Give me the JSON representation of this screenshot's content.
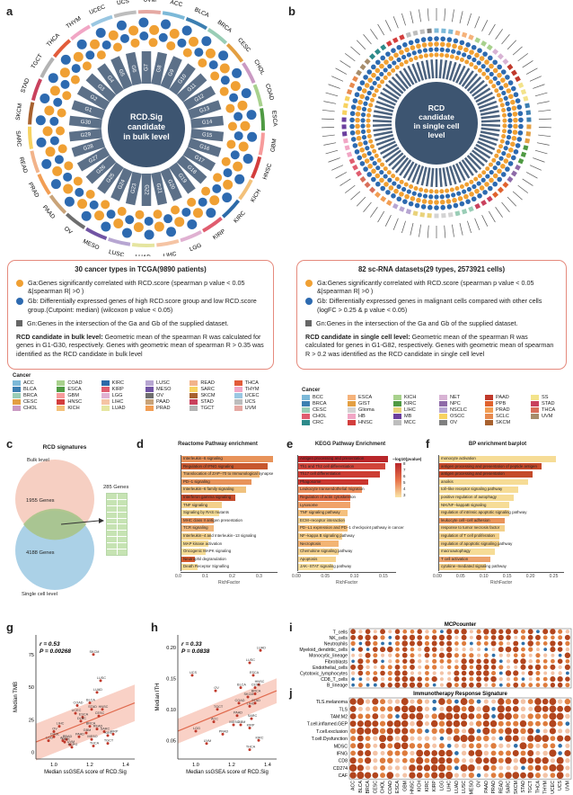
{
  "labels": {
    "a": "a",
    "b": "b",
    "c": "c",
    "d": "d",
    "e": "e",
    "f": "f",
    "g": "g",
    "h": "h",
    "i": "i",
    "j": "j"
  },
  "panel_a": {
    "center": "RCD.Sig candidate in bulk level",
    "cancers": [
      "ACC",
      "BLCA",
      "BRCA",
      "CESC",
      "CHOL",
      "COAD",
      "ESCA",
      "GBM",
      "HNSC",
      "KICH",
      "KIRC",
      "KIRP",
      "LGG",
      "LIHC",
      "LUAD",
      "LUSC",
      "MESO",
      "OV",
      "PAAD",
      "PRAD",
      "READ",
      "SARC",
      "SKCM",
      "STAD",
      "TGCT",
      "THCA",
      "THYM",
      "UCEC",
      "UCS",
      "UVM"
    ],
    "genes": [
      "G1",
      "G2",
      "G3",
      "G4",
      "G5",
      "G6",
      "G7",
      "G8",
      "G9",
      "G10",
      "G11",
      "G12",
      "G13",
      "G14",
      "G15",
      "G16",
      "G17",
      "G18",
      "G19",
      "G20",
      "G21",
      "G22",
      "G23",
      "G24",
      "G25",
      "G26",
      "G27",
      "G28",
      "G29",
      "G30"
    ]
  },
  "panel_b": {
    "center": "RCD candidate in single cell level"
  },
  "box_left": {
    "title": "30 cancer types in TCGA(9890 patients)",
    "ga": "Ga:Genes significantly correlated with RCD.score (spearman p value < 0.05 &|spearman R| >0 )",
    "gb": "Gb: Differentially expressed genes of high RCD.score group and low RCD.score group.(Cutpoint: median) (wilcoxon p value < 0.05)",
    "gn": "Gn:Genes in the intersection of the Ga and Gb of the supplied dataset.",
    "rcd_head": "RCD candidate in bulk level:",
    "rcd_text": " Geometric mean of the spearman R was calculated for genes in G1-G30, respectively. Genes with geometric mean of spearman R > 0.35 was identified as the RCD candidate in bulk level"
  },
  "box_right": {
    "title": "82 sc-RNA datasets(29 types, 2573921 cells)",
    "ga": "Ga:Genes significantly correlated with RCD.score (spearman p value < 0.05 &|spearman R| >0 )",
    "gb": "Gb: Differentially expressed genes in malignant cells compared with other cells (logFC > 0.25 & p value < 0.05)",
    "gn": "Gn:Genes in the intersection of the Ga and Gb of the supplied dataset.",
    "rcd_head": "RCD candidate in single cell level:",
    "rcd_text": " Geometric mean of the spearman R was calculated for genes in G1-G82, respectively. Genes with geometric mean of spearman R > 0.2 was identified as the RCD candidate in single cell level"
  },
  "cancer_legend_left": {
    "title": "Cancer",
    "items": [
      {
        "n": "ACC",
        "c": "#7cb9d8"
      },
      {
        "n": "COAD",
        "c": "#a8d18d"
      },
      {
        "n": "KIRC",
        "c": "#2d6aa8"
      },
      {
        "n": "LUSC",
        "c": "#b7a6d2"
      },
      {
        "n": "READ",
        "c": "#f2b38a"
      },
      {
        "n": "THCA",
        "c": "#e25c3a"
      },
      {
        "n": "BLCA",
        "c": "#3c7fb1"
      },
      {
        "n": "ESCA",
        "c": "#4f9a43"
      },
      {
        "n": "KIRP",
        "c": "#e05d6f"
      },
      {
        "n": "MESO",
        "c": "#7154a4"
      },
      {
        "n": "SARC",
        "c": "#f7d260"
      },
      {
        "n": "THYM",
        "c": "#f1a6c5"
      },
      {
        "n": "BRCA",
        "c": "#99cdb6"
      },
      {
        "n": "GBM",
        "c": "#f79b9b"
      },
      {
        "n": "LGG",
        "c": "#e0b1d2"
      },
      {
        "n": "OV",
        "c": "#6e6e6e"
      },
      {
        "n": "SKCM",
        "c": "#a8612e"
      },
      {
        "n": "UCEC",
        "c": "#9ac7e2"
      },
      {
        "n": "CESC",
        "c": "#e39f42"
      },
      {
        "n": "HNSC",
        "c": "#d33e3d"
      },
      {
        "n": "LIHC",
        "c": "#f5c4a4"
      },
      {
        "n": "PAAD",
        "c": "#c9a378"
      },
      {
        "n": "STAD",
        "c": "#c9415d"
      },
      {
        "n": "UCS",
        "c": "#bdbdbd"
      },
      {
        "n": "CHOL",
        "c": "#ca9ac3"
      },
      {
        "n": "KICH",
        "c": "#f3c17a"
      },
      {
        "n": "LUAD",
        "c": "#e5e5a0"
      },
      {
        "n": "PRAD",
        "c": "#f29e54"
      },
      {
        "n": "TGCT",
        "c": "#b3b3b3"
      },
      {
        "n": "UVM",
        "c": "#e5a9a3"
      }
    ]
  },
  "cancer_legend_right": {
    "title": "Cancer",
    "items": [
      {
        "n": "BCC",
        "c": "#7cb9d8"
      },
      {
        "n": "ESCA",
        "c": "#f5b27a"
      },
      {
        "n": "KICH",
        "c": "#a8d18d"
      },
      {
        "n": "NET",
        "c": "#d8b3d4"
      },
      {
        "n": "PAAD",
        "c": "#c0392b"
      },
      {
        "n": "SS",
        "c": "#f3e38b"
      },
      {
        "n": "BRCA",
        "c": "#3c7fb1"
      },
      {
        "n": "GIST",
        "c": "#e39f42"
      },
      {
        "n": "KIRC",
        "c": "#4f9a43"
      },
      {
        "n": "NPC",
        "c": "#8e6aa8"
      },
      {
        "n": "PPB",
        "c": "#e0622e"
      },
      {
        "n": "STAD",
        "c": "#c9415d"
      },
      {
        "n": "CESC",
        "c": "#99cdb6"
      },
      {
        "n": "Glioma",
        "c": "#d3d3d3"
      },
      {
        "n": "LIHC",
        "c": "#e9d27a"
      },
      {
        "n": "NSCLC",
        "c": "#b7a6d2"
      },
      {
        "n": "PRAD",
        "c": "#f29e54"
      },
      {
        "n": "THCA",
        "c": "#d96f5a"
      },
      {
        "n": "CHOL",
        "c": "#e05d6f"
      },
      {
        "n": "HB",
        "c": "#f1a6c5"
      },
      {
        "n": "MB",
        "c": "#6b3f9e"
      },
      {
        "n": "OSCC",
        "c": "#f7d260"
      },
      {
        "n": "SCLC",
        "c": "#e78a4f"
      },
      {
        "n": "UVM",
        "c": "#a78d6b"
      },
      {
        "n": "CRC",
        "c": "#2d8a8a"
      },
      {
        "n": "HNSC",
        "c": "#d33e3d"
      },
      {
        "n": "MCC",
        "c": "#bdbdbd"
      },
      {
        "n": "OV",
        "c": "#7f7f7f"
      },
      {
        "n": "SKCM",
        "c": "#a8612e"
      }
    ]
  },
  "panel_c": {
    "title": "RCD signatures",
    "bulk": "Bulk level",
    "sc": "Single cell level",
    "n_bulk": "1955 Genes",
    "n_sc": "4188 Genes",
    "n_overlap": "285 Genes"
  },
  "panel_d": {
    "title": "Reactome Pathway enrichment",
    "xlabel": "RichFactor",
    "ticks": [
      "0.0",
      "0.1",
      "0.2",
      "0.3"
    ],
    "terms": [
      {
        "t": "Interleukin−6 signaling",
        "v": 0.34,
        "c": "#e8935a"
      },
      {
        "t": "Regulation of IFNG signaling",
        "v": 0.32,
        "c": "#c7572e"
      },
      {
        "t": "Translocation of ZAP−70 to Immunological synapse",
        "v": 0.29,
        "c": "#ecb271"
      },
      {
        "t": "PD−1 signaling",
        "v": 0.26,
        "c": "#e8935a"
      },
      {
        "t": "Interleukin−6 family signaling",
        "v": 0.24,
        "c": "#f0c27e"
      },
      {
        "t": "Interferon gamma signaling",
        "v": 0.2,
        "c": "#c44a2a"
      },
      {
        "t": "TNF signaling",
        "v": 0.15,
        "c": "#f3d08a"
      },
      {
        "t": "Signaling by RAS mutants",
        "v": 0.14,
        "c": "#f6dc96"
      },
      {
        "t": "MHC class II antigen presentation",
        "v": 0.12,
        "c": "#e8935a"
      },
      {
        "t": "TCR signaling",
        "v": 0.12,
        "c": "#f0b67a"
      },
      {
        "t": "Interleukin−4 and Interleukin−13 signaling",
        "v": 0.11,
        "c": "#f3d08a"
      },
      {
        "t": "MAP kinase activation",
        "v": 0.1,
        "c": "#f6dc96"
      },
      {
        "t": "Oncogenic MAPK signaling",
        "v": 0.09,
        "c": "#f6dc96"
      },
      {
        "t": "Neutrophil degranulation",
        "v": 0.05,
        "c": "#d45a2e"
      },
      {
        "t": "Death Receptor Signalling",
        "v": 0.06,
        "c": "#f6dc96"
      }
    ]
  },
  "panel_e": {
    "title": "KEGG Pathway Enrichment",
    "xlabel": "RichFactor",
    "ticks": [
      "0.00",
      "0.05",
      "0.10",
      "0.15"
    ],
    "legend_title": "−log10(pvalue)",
    "legend_ticks": [
      "8",
      "7",
      "6",
      "5",
      "4",
      "3"
    ],
    "terms": [
      {
        "t": "Antigen processing and presentation",
        "v": 0.155,
        "c": "#b8262a"
      },
      {
        "t": "Th1 and Th2 cell differentiation",
        "v": 0.15,
        "c": "#d0443a"
      },
      {
        "t": "Th17 cell differentiation",
        "v": 0.14,
        "c": "#cc3e34"
      },
      {
        "t": "Phagosome",
        "v": 0.12,
        "c": "#c9362f"
      },
      {
        "t": "Leukocyte transendothelial migration",
        "v": 0.11,
        "c": "#ee9260"
      },
      {
        "t": "Regulation of actin cytoskeleton",
        "v": 0.09,
        "c": "#e06c45"
      },
      {
        "t": "Lysosome",
        "v": 0.09,
        "c": "#f0a269"
      },
      {
        "t": "TNF signaling pathway",
        "v": 0.085,
        "c": "#f5c07c"
      },
      {
        "t": "ECM−receptor interaction",
        "v": 0.08,
        "c": "#f7d490"
      },
      {
        "t": "PD−L1 expression and PD−1 checkpoint pathway in cancer",
        "v": 0.085,
        "c": "#f5c07c"
      },
      {
        "t": "NF−kappa B signaling pathway",
        "v": 0.075,
        "c": "#f6cd88"
      },
      {
        "t": "Necroptosis",
        "v": 0.07,
        "c": "#f3b474"
      },
      {
        "t": "Chemokine signaling pathway",
        "v": 0.07,
        "c": "#f7d490"
      },
      {
        "t": "Apoptosis",
        "v": 0.065,
        "c": "#f7d490"
      },
      {
        "t": "JAK−STAT signaling pathway",
        "v": 0.06,
        "c": "#f9e0a0"
      }
    ]
  },
  "panel_f": {
    "title": "BP enrichment barplot",
    "xlabel": "RichFactor",
    "ticks": [
      "0.00",
      "0.05",
      "0.10",
      "0.15",
      "0.20",
      "0.25"
    ],
    "terms": [
      {
        "t": "monocyte activation",
        "v": 0.25,
        "c": "#f6dc96"
      },
      {
        "t": "antigen processing and presentation of peptide antigen",
        "v": 0.22,
        "c": "#c44a2a"
      },
      {
        "t": "antigen processing and presentation",
        "v": 0.2,
        "c": "#c44a2a"
      },
      {
        "t": "anoikis",
        "v": 0.19,
        "c": "#f6dc96"
      },
      {
        "t": "toll−like receptor signaling pathway",
        "v": 0.17,
        "c": "#f6dc96"
      },
      {
        "t": "positive regulation of autophagy",
        "v": 0.16,
        "c": "#f6dc96"
      },
      {
        "t": "NIK/NF−kappaB signaling",
        "v": 0.15,
        "c": "#f6dc96"
      },
      {
        "t": "regulation of intrinsic apoptotic signaling pathway",
        "v": 0.15,
        "c": "#f3d08a"
      },
      {
        "t": "leukocyte cell−cell adhesion",
        "v": 0.14,
        "c": "#e8935a"
      },
      {
        "t": "response to tumor necrosis factor",
        "v": 0.14,
        "c": "#f3d08a"
      },
      {
        "t": "regulation of T cell proliferation",
        "v": 0.13,
        "c": "#f3d08a"
      },
      {
        "t": "regulation of apoptotic signaling pathway",
        "v": 0.13,
        "c": "#f3d08a"
      },
      {
        "t": "macroautophagy",
        "v": 0.12,
        "c": "#f6dc96"
      },
      {
        "t": "T cell activation",
        "v": 0.11,
        "c": "#eca26c"
      },
      {
        "t": "cytokine−mediated signaling pathway",
        "v": 0.1,
        "c": "#f3d08a"
      }
    ]
  },
  "panel_g": {
    "r": "r = 0.53",
    "p": "P = 0.00268",
    "xlabel": "Median ssGSEA score of RCD.Sig",
    "ylabel": "Median TMB",
    "xticks": [
      "1.0",
      "1.2",
      "1.4"
    ],
    "yticks": [
      "0",
      "25",
      "50",
      "75"
    ],
    "points": [
      [
        "SKCM",
        1.22,
        75
      ],
      [
        "LUSC",
        1.26,
        55
      ],
      [
        "LUAD",
        1.24,
        46
      ],
      [
        "BLCA",
        1.2,
        38
      ],
      [
        "COAD",
        1.13,
        36
      ],
      [
        "HNSC",
        1.27,
        33
      ],
      [
        "STAD",
        1.21,
        33
      ],
      [
        "UCEC",
        1.12,
        30
      ],
      [
        "CESC",
        1.25,
        28
      ],
      [
        "ESCA",
        1.16,
        27
      ],
      [
        "DLBC",
        1.15,
        24
      ],
      [
        "LIHC",
        1.03,
        20
      ],
      [
        "OV",
        1.0,
        16
      ],
      [
        "READ",
        1.24,
        18
      ],
      [
        "SARC",
        1.28,
        16
      ],
      [
        "PAAD",
        1.14,
        12
      ],
      [
        "KIRC",
        1.3,
        13
      ],
      [
        "PRAD",
        1.07,
        10
      ],
      [
        "LGG",
        0.97,
        9
      ],
      [
        "KICH",
        1.06,
        8
      ],
      [
        "THCA",
        1.22,
        5
      ],
      [
        "UVM",
        1.09,
        6
      ],
      [
        "TGCT",
        1.3,
        7
      ],
      [
        "MESO",
        1.21,
        10
      ],
      [
        "KIRP",
        1.33,
        14
      ],
      [
        "ACC",
        1.05,
        9
      ],
      [
        "GBM",
        1.18,
        15
      ],
      [
        "BRCA",
        1.2,
        20
      ],
      [
        "CHOL",
        1.0,
        12
      ],
      [
        "PCPG",
        1.1,
        4
      ]
    ]
  },
  "panel_h": {
    "r": "r = 0.33",
    "p": "P = 0.0838",
    "xlabel": "Median ssGSEA score of RCD.Sig",
    "ylabel": "Median ITH",
    "xticks": [
      "1.0",
      "1.2",
      "1.4"
    ],
    "yticks": [
      "0.05",
      "0.10",
      "0.15",
      "0.20"
    ],
    "points": [
      [
        "LUAD",
        1.36,
        0.195
      ],
      [
        "LUSC",
        1.3,
        0.175
      ],
      [
        "UCS",
        0.98,
        0.155
      ],
      [
        "ESCA",
        1.32,
        0.155
      ],
      [
        "HNSC",
        1.35,
        0.14
      ],
      [
        "BLCA",
        1.25,
        0.135
      ],
      [
        "CESC",
        1.33,
        0.135
      ],
      [
        "SKCM",
        1.29,
        0.12
      ],
      [
        "BRCA",
        1.33,
        0.125
      ],
      [
        "OV",
        1.11,
        0.13
      ],
      [
        "COAD",
        1.24,
        0.11
      ],
      [
        "STAD",
        1.33,
        0.11
      ],
      [
        "LIHC",
        1.3,
        0.105
      ],
      [
        "ACC",
        1.1,
        0.08
      ],
      [
        "PAAD",
        1.23,
        0.09
      ],
      [
        "TGCT",
        1.12,
        0.1
      ],
      [
        "GBM",
        1.25,
        0.075
      ],
      [
        "MESO",
        1.21,
        0.075
      ],
      [
        "UVM",
        1.06,
        0.045
      ],
      [
        "PRAD",
        1.15,
        0.06
      ],
      [
        "SARC",
        1.31,
        0.085
      ],
      [
        "KIRP",
        1.3,
        0.07
      ],
      [
        "THCA",
        1.3,
        0.035
      ],
      [
        "KIRC",
        1.35,
        0.05
      ],
      [
        "LGG",
        1.0,
        0.065
      ]
    ]
  },
  "panel_i": {
    "title": "MCPcounter",
    "rows": [
      "T_cells",
      "NK_cells",
      "Neutrophils",
      "Myeloid_dendritic_cells",
      "Monocytic_lineage",
      "Fibroblasts",
      "Endothelial_cells",
      "Cytotoxic_lymphocytes",
      "CD8_T_cells",
      "B_lineage"
    ]
  },
  "panel_j": {
    "title": "Immunotherapy Response Signature",
    "rows": [
      "TLS.melanoma",
      "TLS",
      "TAM.M2",
      "T.cell.inflamed.GEP",
      "T.cell.exclusion",
      "T.cell.Dysfunction",
      "MDSC",
      "IFNG",
      "CD8",
      "CD274",
      "CAF"
    ]
  },
  "heat_cols": [
    "ACC",
    "BLCA",
    "BRCA",
    "CESC",
    "CHOL",
    "COAD",
    "ESCA",
    "GBM",
    "HNSC",
    "KICH",
    "KIRC",
    "KIRP",
    "LGG",
    "LIHC",
    "LUAD",
    "LUSC",
    "MESO",
    "OV",
    "PAAD",
    "PRAD",
    "READ",
    "SARC",
    "SKCM",
    "STAD",
    "TGCT",
    "THCA",
    "THYM",
    "UCEC",
    "UCS",
    "UVM"
  ]
}
